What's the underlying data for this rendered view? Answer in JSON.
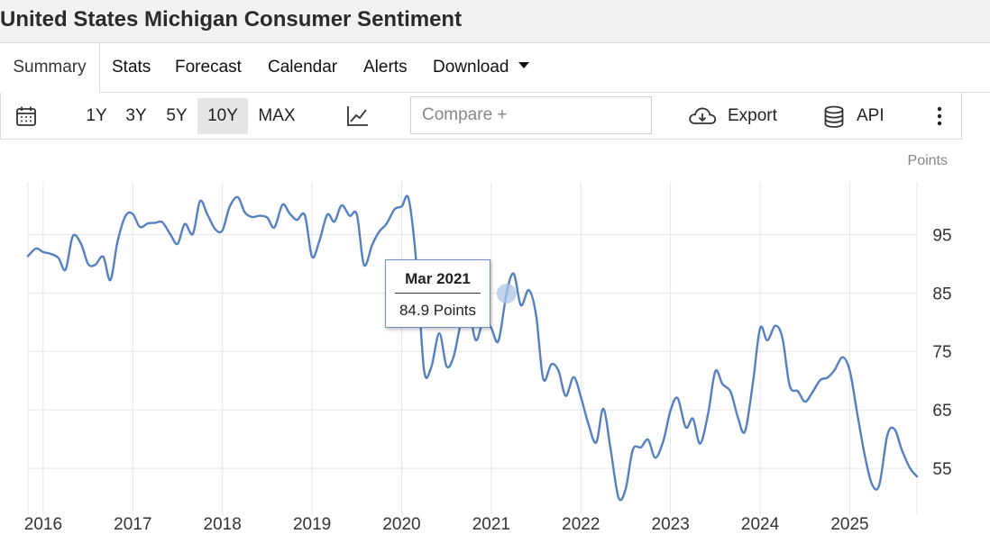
{
  "header": {
    "title": "United States Michigan Consumer Sentiment"
  },
  "tabs": [
    {
      "label": "Summary"
    },
    {
      "label": "Stats"
    },
    {
      "label": "Forecast"
    },
    {
      "label": "Calendar"
    },
    {
      "label": "Alerts"
    },
    {
      "label": "Download"
    }
  ],
  "toolbar": {
    "ranges": [
      "1Y",
      "3Y",
      "5Y",
      "10Y",
      "MAX"
    ],
    "selected_range": "10Y",
    "compare_placeholder": "Compare +",
    "export_label": "Export",
    "api_label": "API"
  },
  "tooltip": {
    "date": "Mar 2021",
    "value": "84.9 Points"
  },
  "colors": {
    "line": "#5580bf",
    "grid": "#e6e6e6",
    "marker": "#aec6e6"
  },
  "chart_data": {
    "type": "line",
    "title": "United States Michigan Consumer Sentiment",
    "unit_label": "Points",
    "ylim": [
      47,
      104
    ],
    "yticks": [
      55,
      65,
      75,
      85,
      95
    ],
    "xlim": [
      2015.83,
      2025.75
    ],
    "xticks": [
      {
        "x": 2016,
        "label": "2016"
      },
      {
        "x": 2017,
        "label": "2017"
      },
      {
        "x": 2018,
        "label": "2018"
      },
      {
        "x": 2019,
        "label": "2019"
      },
      {
        "x": 2020,
        "label": "2020"
      },
      {
        "x": 2021,
        "label": "2021"
      },
      {
        "x": 2022,
        "label": "2022"
      },
      {
        "x": 2023,
        "label": "2023"
      },
      {
        "x": 2024,
        "label": "2024"
      },
      {
        "x": 2025,
        "label": "2025"
      }
    ],
    "highlight": {
      "x": 2021.17,
      "y": 84.9
    },
    "series": [
      {
        "name": "Michigan Consumer Sentiment",
        "x": [
          2015.83,
          2015.92,
          2016.0,
          2016.08,
          2016.17,
          2016.25,
          2016.33,
          2016.42,
          2016.5,
          2016.58,
          2016.67,
          2016.75,
          2016.83,
          2016.92,
          2017.0,
          2017.08,
          2017.17,
          2017.25,
          2017.33,
          2017.42,
          2017.5,
          2017.58,
          2017.67,
          2017.75,
          2017.83,
          2017.92,
          2018.0,
          2018.08,
          2018.17,
          2018.25,
          2018.33,
          2018.42,
          2018.5,
          2018.58,
          2018.67,
          2018.75,
          2018.83,
          2018.92,
          2019.0,
          2019.08,
          2019.17,
          2019.25,
          2019.33,
          2019.42,
          2019.5,
          2019.58,
          2019.67,
          2019.75,
          2019.83,
          2019.92,
          2020.0,
          2020.08,
          2020.17,
          2020.25,
          2020.33,
          2020.42,
          2020.5,
          2020.58,
          2020.67,
          2020.75,
          2020.83,
          2020.92,
          2021.0,
          2021.08,
          2021.17,
          2021.25,
          2021.33,
          2021.42,
          2021.5,
          2021.58,
          2021.67,
          2021.75,
          2021.83,
          2021.92,
          2022.0,
          2022.08,
          2022.17,
          2022.25,
          2022.33,
          2022.42,
          2022.5,
          2022.58,
          2022.67,
          2022.75,
          2022.83,
          2022.92,
          2023.0,
          2023.08,
          2023.17,
          2023.25,
          2023.33,
          2023.42,
          2023.5,
          2023.58,
          2023.67,
          2023.75,
          2023.83,
          2023.92,
          2024.0,
          2024.08,
          2024.17,
          2024.25,
          2024.33,
          2024.42,
          2024.5,
          2024.58,
          2024.67,
          2024.75,
          2024.83,
          2024.92,
          2025.0,
          2025.08,
          2025.17,
          2025.25,
          2025.33,
          2025.42,
          2025.5,
          2025.58,
          2025.67,
          2025.75
        ],
        "values": [
          91.3,
          92.6,
          92.0,
          91.7,
          91.0,
          89.0,
          94.7,
          93.5,
          90.0,
          89.8,
          91.2,
          87.2,
          93.8,
          98.2,
          98.5,
          96.3,
          96.9,
          97.0,
          97.1,
          95.0,
          93.4,
          96.8,
          95.1,
          100.7,
          98.5,
          95.9,
          95.7,
          99.7,
          101.4,
          98.8,
          98.0,
          98.2,
          97.9,
          96.2,
          100.1,
          98.6,
          97.5,
          98.3,
          91.2,
          93.8,
          98.4,
          97.2,
          100.0,
          98.2,
          98.4,
          89.8,
          93.2,
          95.5,
          96.8,
          99.3,
          99.8,
          101.0,
          89.1,
          71.8,
          72.3,
          78.1,
          72.5,
          74.1,
          80.4,
          81.8,
          76.9,
          80.7,
          79.0,
          76.8,
          84.9,
          88.3,
          82.9,
          85.5,
          81.2,
          70.3,
          72.8,
          71.7,
          67.4,
          70.6,
          67.2,
          62.8,
          59.4,
          65.2,
          58.4,
          50.0,
          51.5,
          58.2,
          58.6,
          59.9,
          56.8,
          59.7,
          64.9,
          67.0,
          62.0,
          63.5,
          59.2,
          64.4,
          71.6,
          69.4,
          68.1,
          63.8,
          61.3,
          69.7,
          79.0,
          76.9,
          79.4,
          77.2,
          69.1,
          68.2,
          66.4,
          67.9,
          70.1,
          70.5,
          71.8,
          74.0,
          71.7,
          64.7,
          57.0,
          52.2,
          52.2,
          60.7,
          61.7,
          58.2,
          55.1,
          53.6
        ]
      }
    ]
  }
}
